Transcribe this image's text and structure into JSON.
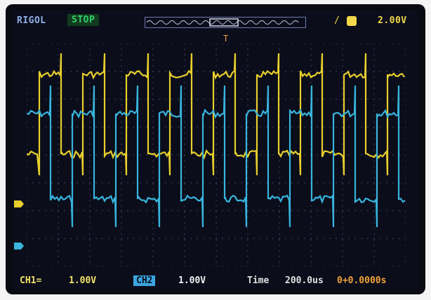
{
  "header": {
    "brand": "RIGOL",
    "run_state": "STOP",
    "trigger_slope": "/",
    "trigger_level": "2.00V",
    "trigger_marker": "T"
  },
  "footer": {
    "ch1_label": "CH1=",
    "ch1_scale": "1.00V",
    "ch2_label": "CH2",
    "ch2_scale": "1.00V",
    "time_label": "Time",
    "time_scale": "200.0us",
    "trigger_offset": "0+0.0000s"
  },
  "colors": {
    "ch1": "#e8cf2c",
    "ch2": "#38b4dd",
    "grid": "#3a3f5c",
    "accent": "#f2a338"
  },
  "icons": {
    "trigger_source": "square-icon",
    "ch1_marker": "arrow-right-icon",
    "ch2_marker": "arrow-right-icon"
  }
}
